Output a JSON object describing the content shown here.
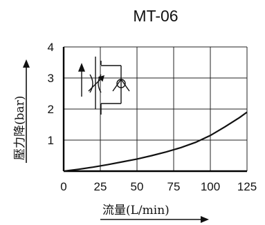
{
  "chart_data": {
    "type": "line",
    "title": "MT-06",
    "xlabel": "流量(L/min)",
    "ylabel": "壓力降(bar)",
    "xlim": [
      0,
      125
    ],
    "ylim": [
      0,
      4
    ],
    "xticks": [
      "0",
      "25",
      "50",
      "75",
      "100",
      "125"
    ],
    "yticks": [
      "1",
      "2",
      "3",
      "4"
    ],
    "grid": true,
    "series": [
      {
        "x": [
          0,
          10,
          20,
          30,
          40,
          50,
          60,
          70,
          80,
          90,
          100,
          110,
          120,
          125
        ],
        "y": [
          0,
          0.06,
          0.13,
          0.21,
          0.3,
          0.39,
          0.5,
          0.62,
          0.76,
          0.93,
          1.15,
          1.43,
          1.73,
          1.9
        ]
      }
    ],
    "inset_symbol": "check-valve-with-throttle-symbol"
  },
  "colors": {
    "line": "#111111",
    "grid": "#222222"
  }
}
